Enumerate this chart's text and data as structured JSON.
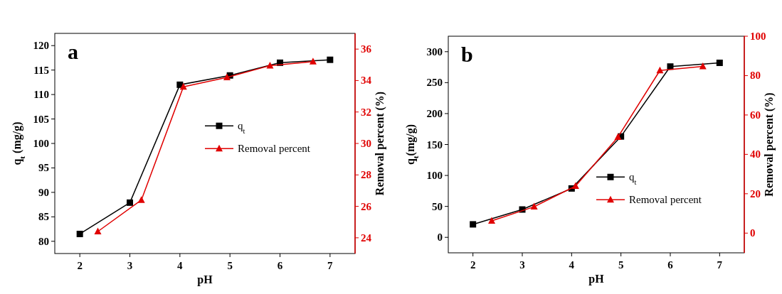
{
  "chart_data": [
    {
      "type": "line",
      "title": "a",
      "xlabel": "pH",
      "ylabel": "q$_{t}$ (mg/g)",
      "y2label": "Removal percent (%)",
      "xlim": [
        1.5,
        7.5
      ],
      "xticks": [
        2,
        3,
        4,
        5,
        6,
        7
      ],
      "ylim": [
        77.5,
        122.5
      ],
      "yticks": [
        80,
        85,
        90,
        95,
        100,
        105,
        110,
        115,
        120
      ],
      "y2lim": [
        23,
        37
      ],
      "y2ticks": [
        24,
        26,
        28,
        30,
        32,
        34,
        36
      ],
      "legend": "right",
      "series": [
        {
          "name": "q$_{t}$",
          "color": "#000000",
          "marker": "square",
          "x": [
            2,
            3,
            4,
            5,
            6,
            7
          ],
          "values": [
            81.5,
            87.9,
            112.0,
            113.9,
            116.5,
            117.1
          ]
        },
        {
          "name": "Removal percent",
          "color": "#e00000",
          "marker": "triangle",
          "axis": "y2",
          "x": [
            2.36,
            3.23,
            4.07,
            4.94,
            5.8,
            6.66
          ],
          "values": [
            24.4,
            26.4,
            33.6,
            34.2,
            34.95,
            35.2
          ]
        }
      ]
    },
    {
      "type": "line",
      "title": "b",
      "xlabel": "pH",
      "ylabel": "q$_{t}$(mg/g)",
      "y2label": "Removal percent (%)",
      "xlim": [
        1.5,
        7.5
      ],
      "xticks": [
        2,
        3,
        4,
        5,
        6,
        7
      ],
      "ylim": [
        -25,
        325
      ],
      "yticks": [
        0,
        50,
        100,
        150,
        200,
        250,
        300
      ],
      "y2lim": [
        -10,
        100
      ],
      "y2ticks": [
        0,
        20,
        40,
        60,
        80,
        100
      ],
      "legend": "bottom right",
      "series": [
        {
          "name": "q$_{t}$",
          "color": "#000000",
          "marker": "square",
          "x": [
            2,
            3,
            4,
            5,
            6,
            7
          ],
          "values": [
            21,
            45,
            79,
            163,
            276,
            282
          ]
        },
        {
          "name": "Removal percent",
          "color": "#e00000",
          "marker": "triangle",
          "axis": "y2",
          "x": [
            2.38,
            3.24,
            4.08,
            4.94,
            5.79,
            6.66
          ],
          "values": [
            6.2,
            13.4,
            23.9,
            48.8,
            82.6,
            84.7
          ]
        }
      ]
    }
  ]
}
